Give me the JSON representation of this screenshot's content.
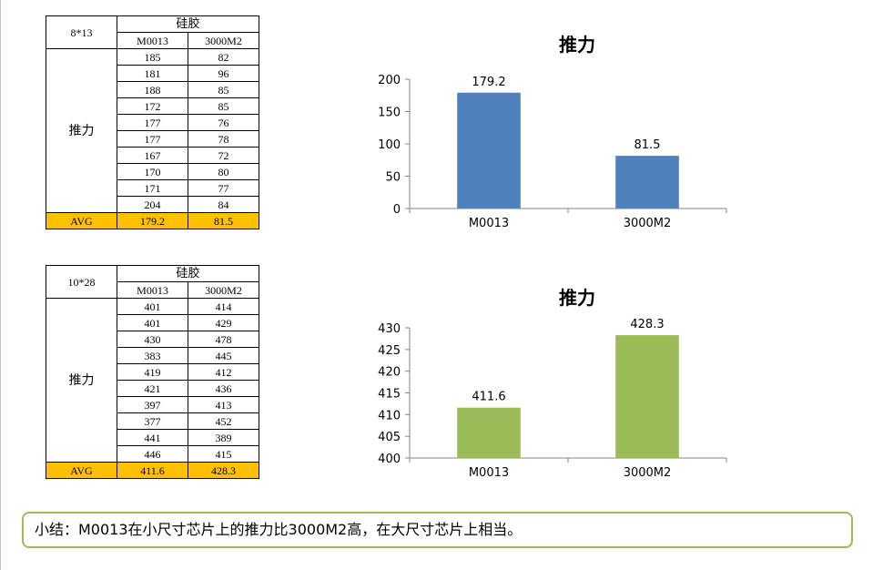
{
  "tables": [
    {
      "size_label": "8*13",
      "group_label": "硅胶",
      "columns": [
        "M0013",
        "3000M2"
      ],
      "row_label": "推力",
      "rows": [
        [
          "185",
          "82"
        ],
        [
          "181",
          "96"
        ],
        [
          "188",
          "85"
        ],
        [
          "172",
          "85"
        ],
        [
          "177",
          "76"
        ],
        [
          "177",
          "78"
        ],
        [
          "167",
          "72"
        ],
        [
          "170",
          "80"
        ],
        [
          "171",
          "77"
        ],
        [
          "204",
          "84"
        ]
      ],
      "avg_label": "AVG",
      "avg": [
        "179.2",
        "81.5"
      ]
    },
    {
      "size_label": "10*28",
      "group_label": "硅胶",
      "columns": [
        "M0013",
        "3000M2"
      ],
      "row_label": "推力",
      "rows": [
        [
          "401",
          "414"
        ],
        [
          "401",
          "429"
        ],
        [
          "430",
          "478"
        ],
        [
          "383",
          "445"
        ],
        [
          "419",
          "412"
        ],
        [
          "421",
          "436"
        ],
        [
          "397",
          "413"
        ],
        [
          "377",
          "452"
        ],
        [
          "441",
          "389"
        ],
        [
          "446",
          "415"
        ]
      ],
      "avg_label": "AVG",
      "avg": [
        "411.6",
        "428.3"
      ]
    }
  ],
  "chart_data": [
    {
      "type": "bar",
      "title": "推力",
      "categories": [
        "M0013",
        "3000M2"
      ],
      "values": [
        179.2,
        81.5
      ],
      "data_labels": [
        "179.2",
        "81.5"
      ],
      "ylim": [
        0,
        200
      ],
      "yticks": [
        0,
        50,
        100,
        150,
        200
      ],
      "color": "#4f81bd",
      "grid": false,
      "legend": "none"
    },
    {
      "type": "bar",
      "title": "推力",
      "categories": [
        "M0013",
        "3000M2"
      ],
      "values": [
        411.6,
        428.3
      ],
      "data_labels": [
        "411.6",
        "428.3"
      ],
      "ylim": [
        400,
        430
      ],
      "yticks": [
        400,
        405,
        410,
        415,
        420,
        425,
        430
      ],
      "color": "#9bbb59",
      "grid": false,
      "legend": "none"
    }
  ],
  "summary": {
    "text": "小结：M0013在小尺寸芯片上的推力比3000M2高，在大尺寸芯片上相当。"
  }
}
